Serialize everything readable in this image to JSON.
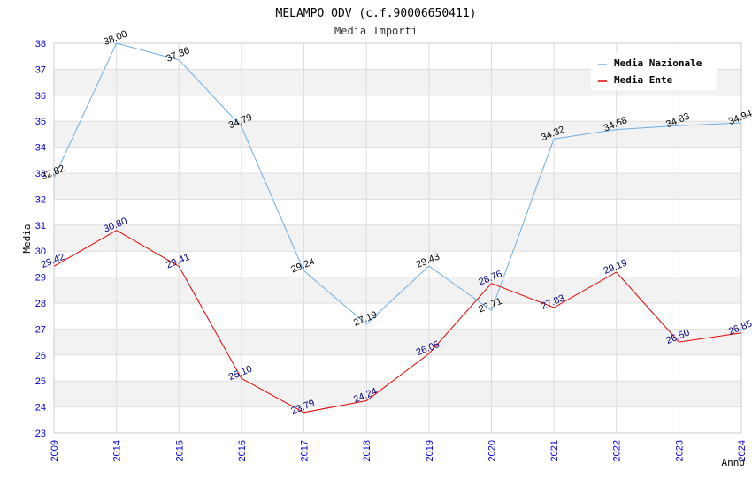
{
  "chart_data": {
    "type": "line",
    "title": "MELAMPO ODV (c.f.90006650411)",
    "subtitle": "Media Importi",
    "ylabel": "Media",
    "xlabel": "Anno",
    "categories": [
      "2009",
      "2014",
      "2015",
      "2016",
      "2017",
      "2018",
      "2019",
      "2020",
      "2021",
      "2022",
      "2023",
      "2024"
    ],
    "ylim": [
      23,
      38
    ],
    "yticks": [
      23,
      24,
      25,
      26,
      27,
      28,
      29,
      30,
      31,
      32,
      33,
      34,
      35,
      36,
      37,
      38
    ],
    "grid": true,
    "legend_position": "top-right",
    "series": [
      {
        "name": "Media Nazionale",
        "color": "#6aaee6",
        "values": [
          32.82,
          38.0,
          37.36,
          34.79,
          29.24,
          27.19,
          29.43,
          27.71,
          34.32,
          34.68,
          34.83,
          34.94
        ],
        "labels": [
          "32.82",
          "38.00",
          "37.36",
          "34.79",
          "29.24",
          "27.19",
          "29.43",
          "27.71",
          "34.32",
          "34.68",
          "34.83",
          "34.94"
        ]
      },
      {
        "name": "Media Ente",
        "color": "#e60000",
        "values": [
          29.42,
          30.8,
          29.41,
          25.1,
          23.79,
          24.24,
          26.05,
          28.76,
          27.83,
          29.19,
          26.5,
          26.85
        ],
        "labels": [
          "29.42",
          "30.80",
          "29.41",
          "25.10",
          "23.79",
          "24.24",
          "26.05",
          "28.76",
          "27.83",
          "29.19",
          "26.50",
          "26.85"
        ]
      }
    ]
  }
}
